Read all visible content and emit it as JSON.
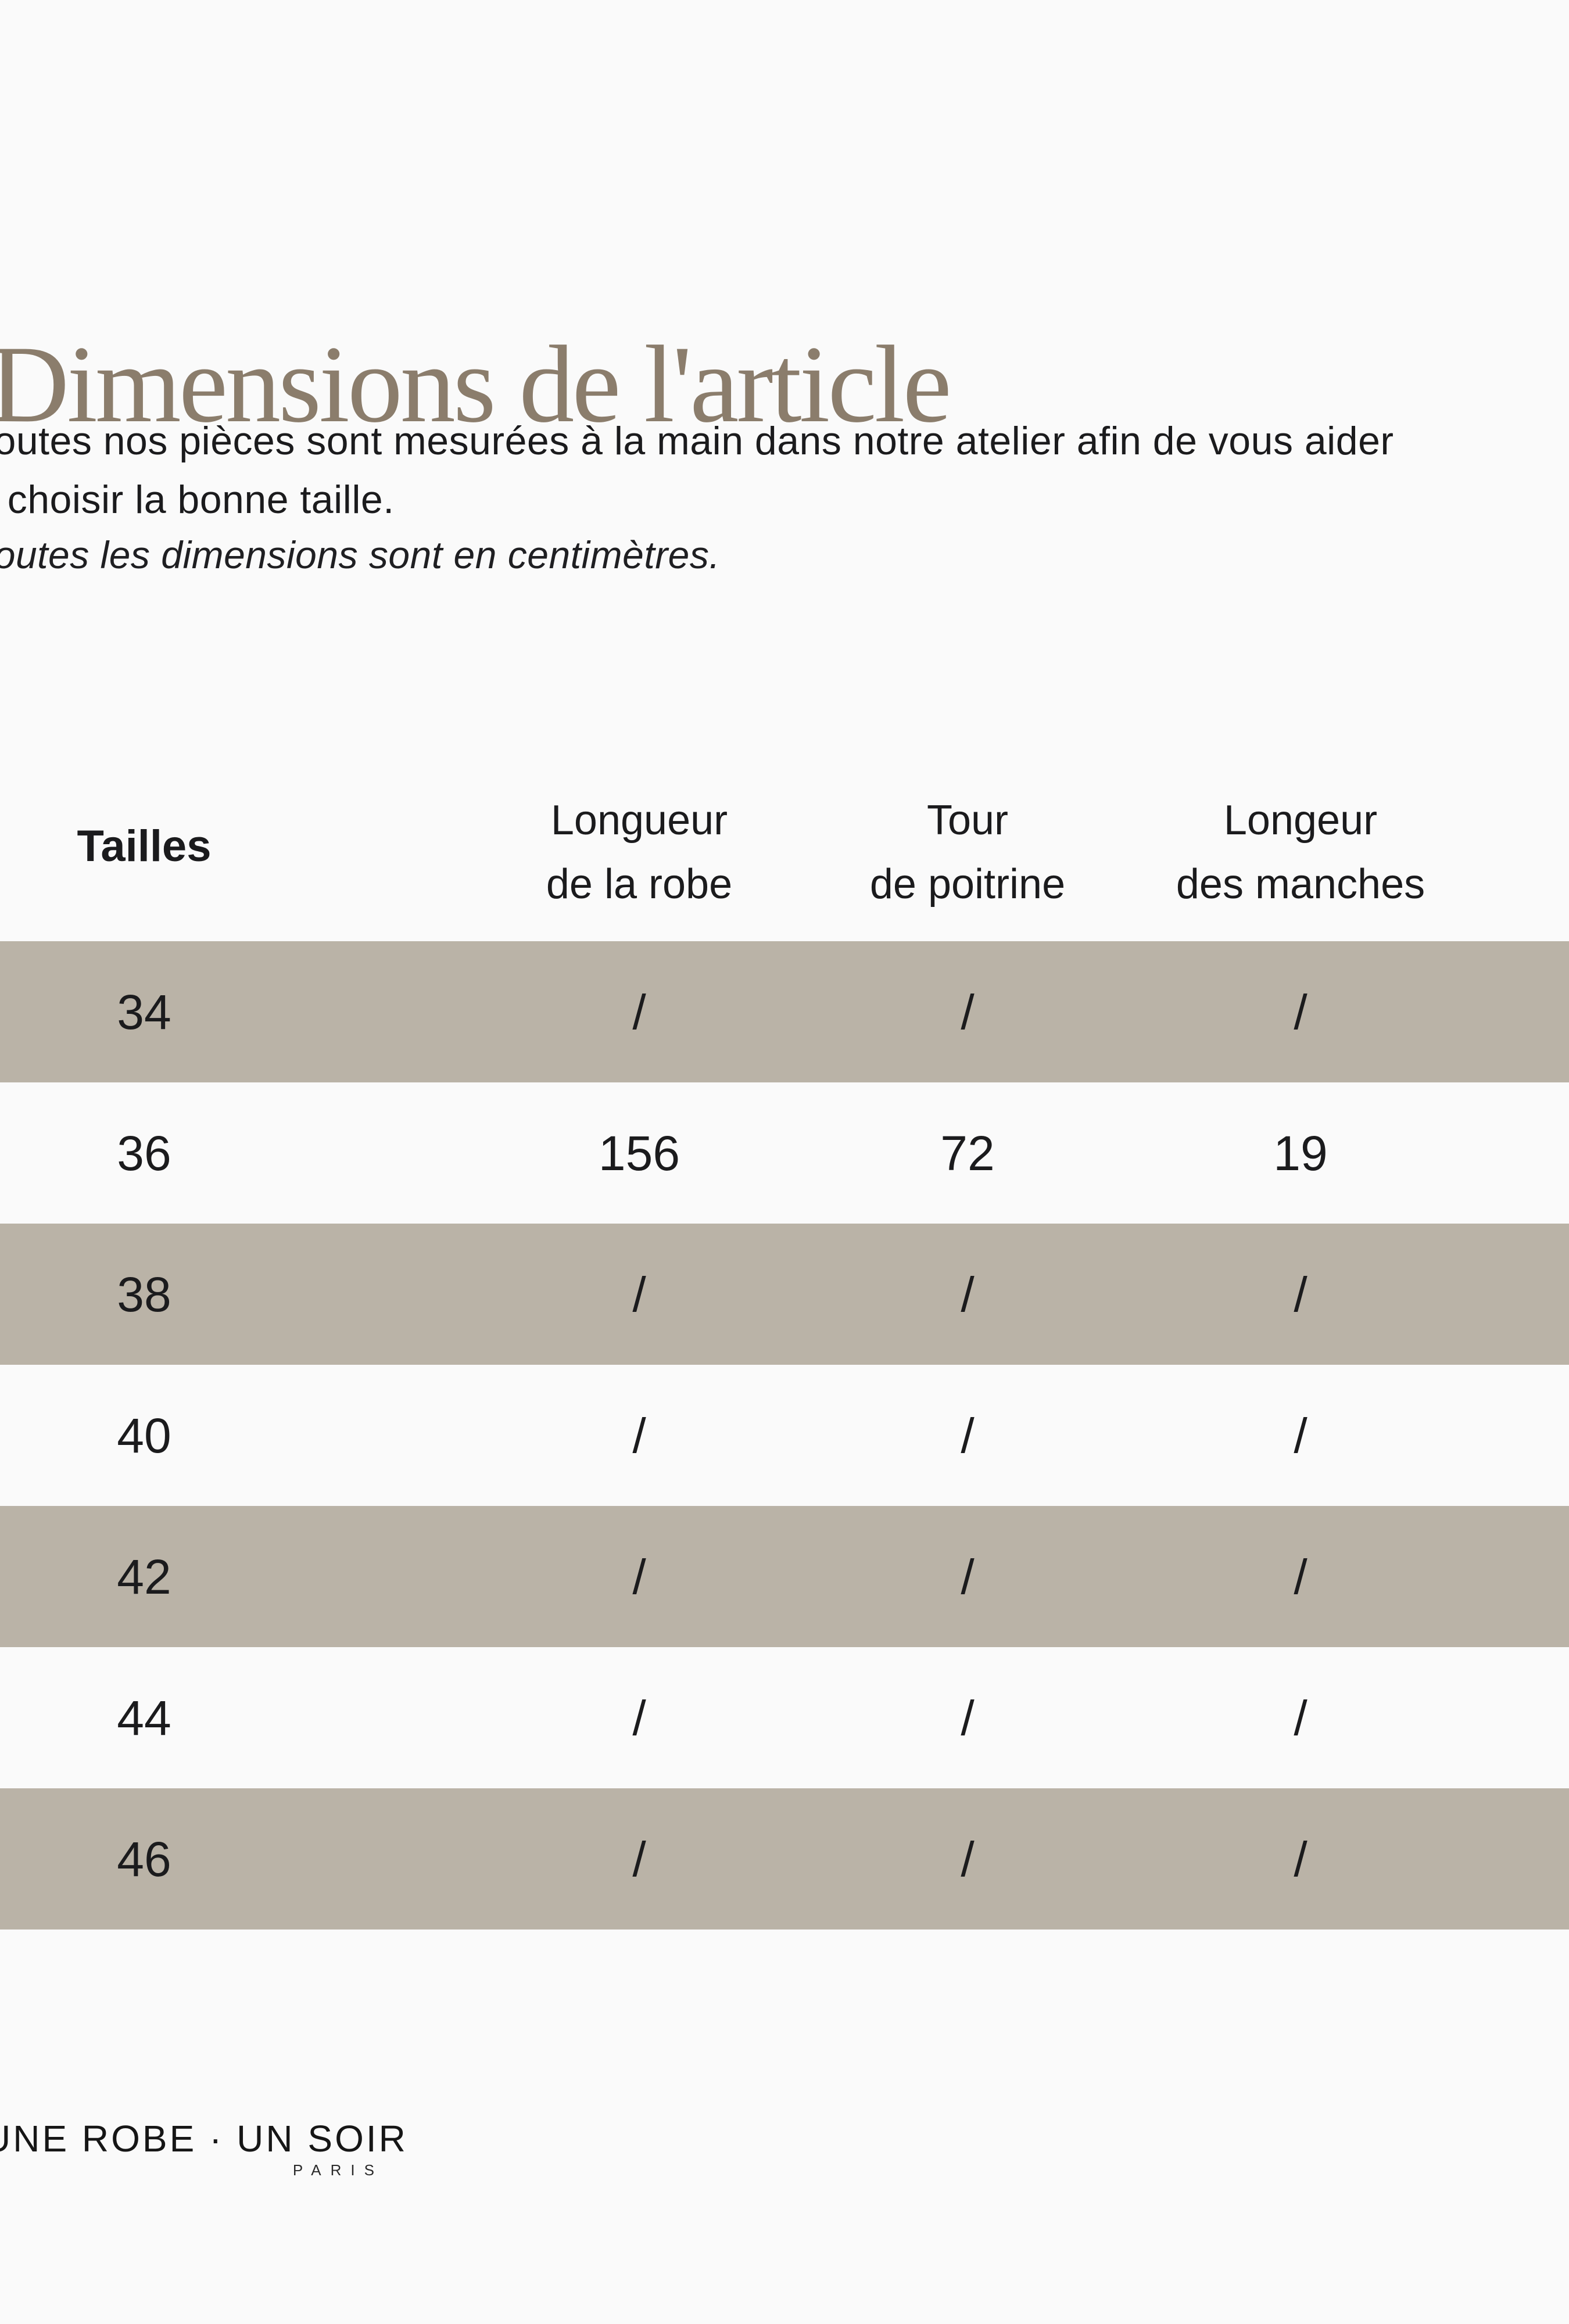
{
  "page": {
    "title": "Dimensions de l'article",
    "intro_line1": "Toutes nos pièces sont mesurées à la main dans notre atelier afin de vous aider",
    "intro_line2": "à choisir la bonne taille.",
    "note": "Toutes les dimensions sont en centimètres."
  },
  "table": {
    "header": {
      "sizes_label": "Tailles",
      "col2_line1": "Longueur",
      "col2_line2": "de la robe",
      "col3_line1": "Tour",
      "col3_line2": "de poitrine",
      "col4_line1": "Longeur",
      "col4_line2": "des manches"
    },
    "rows": [
      {
        "size": "34",
        "values": [
          "/",
          "/",
          "/"
        ],
        "shaded": true
      },
      {
        "size": "36",
        "values": [
          "156",
          "72",
          "19"
        ],
        "shaded": false
      },
      {
        "size": "38",
        "values": [
          "/",
          "/",
          "/"
        ],
        "shaded": true
      },
      {
        "size": "40",
        "values": [
          "/",
          "/",
          "/"
        ],
        "shaded": false
      },
      {
        "size": "42",
        "values": [
          "/",
          "/",
          "/"
        ],
        "shaded": true
      },
      {
        "size": "44",
        "values": [
          "/",
          "/",
          "/"
        ],
        "shaded": false
      },
      {
        "size": "46",
        "values": [
          "/",
          "/",
          "/"
        ],
        "shaded": true
      }
    ]
  },
  "footer": {
    "brand": "UNE ROBE · UN SOIR",
    "brand_sub": "PARIS"
  },
  "colors": {
    "background": "#fafafa",
    "title": "#8b7d6c",
    "text": "#1b1b1d",
    "row_shade": "#bab3a7"
  }
}
